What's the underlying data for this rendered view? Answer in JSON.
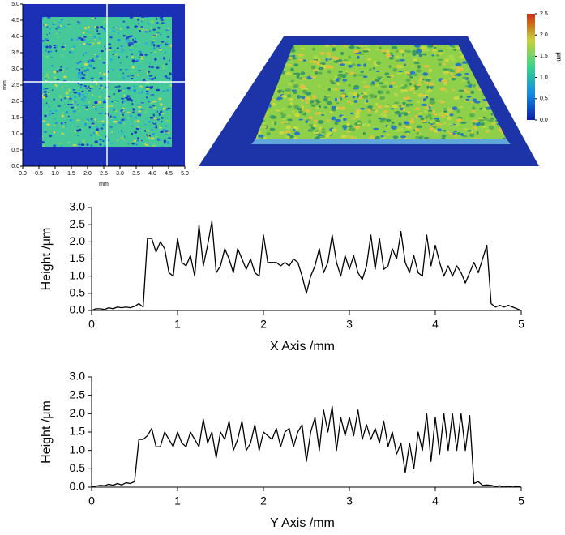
{
  "chart_data": [
    {
      "type": "heatmap",
      "xlabel": "mm",
      "ylabel": "mm",
      "xlim": [
        0,
        5
      ],
      "ylim": [
        0,
        5
      ],
      "xticks": [
        {
          "value": 0,
          "label": "0.0"
        },
        {
          "value": 0.5,
          "label": "0.5"
        },
        {
          "value": 1,
          "label": "1.0"
        },
        {
          "value": 1.5,
          "label": "1.5"
        },
        {
          "value": 2,
          "label": "2.0"
        },
        {
          "value": 2.5,
          "label": "2.5"
        },
        {
          "value": 3,
          "label": "3.0"
        },
        {
          "value": 3.5,
          "label": "3.5"
        },
        {
          "value": 4,
          "label": "4.0"
        },
        {
          "value": 4.5,
          "label": "4.5"
        },
        {
          "value": 5,
          "label": "5.0"
        }
      ],
      "yticks": [
        {
          "value": 0,
          "label": "0.0"
        },
        {
          "value": 0.5,
          "label": "0.5"
        },
        {
          "value": 1,
          "label": "1.0"
        },
        {
          "value": 1.5,
          "label": "1.5"
        },
        {
          "value": 2,
          "label": "2.0"
        },
        {
          "value": 2.5,
          "label": "2.5"
        },
        {
          "value": 3,
          "label": "3.0"
        },
        {
          "value": 3.5,
          "label": "3.5"
        },
        {
          "value": 4,
          "label": "4.0"
        },
        {
          "value": 4.5,
          "label": "4.5"
        },
        {
          "value": 5,
          "label": "5.0"
        }
      ]
    },
    {
      "type": "surface3d",
      "colorbar_label": "μm",
      "clim": [
        0,
        2.5
      ],
      "cticks": [
        {
          "value": 0,
          "label": "0.0"
        },
        {
          "value": 0.5,
          "label": "0.5"
        },
        {
          "value": 1,
          "label": "1.0"
        },
        {
          "value": 1.5,
          "label": "1.5"
        },
        {
          "value": 2,
          "label": "2.0"
        },
        {
          "value": 2.5,
          "label": "2.5"
        }
      ]
    },
    {
      "type": "line",
      "xlabel": "X Axis /mm",
      "ylabel": "Height /μm",
      "color": "#000000",
      "xlim": [
        0,
        5
      ],
      "ylim": [
        0,
        3
      ],
      "xticks": [
        0,
        1,
        2,
        3,
        4,
        5
      ],
      "yticks": [
        {
          "value": 0,
          "label": "0.0"
        },
        {
          "value": 0.5,
          "label": "0.5"
        },
        {
          "value": 1,
          "label": "1.0"
        },
        {
          "value": 1.5,
          "label": "1.5"
        },
        {
          "value": 2,
          "label": "2.0"
        },
        {
          "value": 2.5,
          "label": "2.5"
        },
        {
          "value": 3,
          "label": "3.0"
        }
      ],
      "x": [
        0,
        0.05,
        0.1,
        0.15,
        0.2,
        0.25,
        0.3,
        0.35,
        0.4,
        0.45,
        0.5,
        0.55,
        0.6,
        0.65,
        0.7,
        0.75,
        0.8,
        0.85,
        0.9,
        0.95,
        1,
        1.05,
        1.1,
        1.15,
        1.2,
        1.25,
        1.3,
        1.35,
        1.4,
        1.45,
        1.5,
        1.55,
        1.6,
        1.65,
        1.7,
        1.75,
        1.8,
        1.85,
        1.9,
        1.95,
        2,
        2.05,
        2.1,
        2.15,
        2.2,
        2.25,
        2.3,
        2.35,
        2.4,
        2.45,
        2.5,
        2.55,
        2.6,
        2.65,
        2.7,
        2.75,
        2.8,
        2.85,
        2.9,
        2.95,
        3,
        3.05,
        3.1,
        3.15,
        3.2,
        3.25,
        3.3,
        3.35,
        3.4,
        3.45,
        3.5,
        3.55,
        3.6,
        3.65,
        3.7,
        3.75,
        3.8,
        3.85,
        3.9,
        3.95,
        4,
        4.05,
        4.1,
        4.15,
        4.2,
        4.25,
        4.3,
        4.35,
        4.4,
        4.45,
        4.5,
        4.55,
        4.6,
        4.65,
        4.7,
        4.75,
        4.8,
        4.85,
        4.9,
        4.95,
        5
      ],
      "values": [
        0,
        0.05,
        0.05,
        0.03,
        0.08,
        0.05,
        0.1,
        0.08,
        0.1,
        0.08,
        0.12,
        0.2,
        0.1,
        2.1,
        2.1,
        1.7,
        2,
        1.8,
        1.1,
        1,
        2.1,
        1.4,
        1.3,
        1.6,
        1,
        2.5,
        1.3,
        1.9,
        2.6,
        1.1,
        1.3,
        1.8,
        1.5,
        1.1,
        1.8,
        1.5,
        1.2,
        1.5,
        1.1,
        1,
        2.2,
        1.4,
        1.4,
        1.4,
        1.3,
        1.4,
        1.3,
        1.5,
        1.4,
        1,
        0.5,
        1,
        1.3,
        1.8,
        1.1,
        1.4,
        2.2,
        1.4,
        1,
        1.6,
        1.2,
        1.6,
        1.1,
        0.9,
        1.3,
        2.2,
        1.2,
        2.1,
        1.2,
        1.3,
        1.8,
        1.5,
        2.3,
        1.4,
        1.1,
        1.6,
        1.1,
        1,
        2.2,
        1.3,
        1.9,
        1.4,
        1,
        1.3,
        1,
        1.3,
        1.1,
        0.8,
        1.1,
        1.4,
        1.1,
        1.5,
        1.9,
        0.2,
        0.1,
        0.15,
        0.1,
        0.15,
        0.1,
        0.05,
        0
      ]
    },
    {
      "type": "line",
      "xlabel": "Y Axis /mm",
      "ylabel": "Height /μm",
      "color": "#000000",
      "xlim": [
        0,
        5
      ],
      "ylim": [
        0,
        3
      ],
      "xticks": [
        0,
        1,
        2,
        3,
        4,
        5
      ],
      "yticks": [
        {
          "value": 0,
          "label": "0.0"
        },
        {
          "value": 0.5,
          "label": "0.5"
        },
        {
          "value": 1,
          "label": "1.0"
        },
        {
          "value": 1.5,
          "label": "1.5"
        },
        {
          "value": 2,
          "label": "2.0"
        },
        {
          "value": 2.5,
          "label": "2.5"
        },
        {
          "value": 3,
          "label": "3.0"
        }
      ],
      "x": [
        0,
        0.05,
        0.1,
        0.15,
        0.2,
        0.25,
        0.3,
        0.35,
        0.4,
        0.45,
        0.5,
        0.55,
        0.6,
        0.65,
        0.7,
        0.75,
        0.8,
        0.85,
        0.9,
        0.95,
        1,
        1.05,
        1.1,
        1.15,
        1.2,
        1.25,
        1.3,
        1.35,
        1.4,
        1.45,
        1.5,
        1.55,
        1.6,
        1.65,
        1.7,
        1.75,
        1.8,
        1.85,
        1.9,
        1.95,
        2,
        2.05,
        2.1,
        2.15,
        2.2,
        2.25,
        2.3,
        2.35,
        2.4,
        2.45,
        2.5,
        2.55,
        2.6,
        2.65,
        2.7,
        2.75,
        2.8,
        2.85,
        2.9,
        2.95,
        3,
        3.05,
        3.1,
        3.15,
        3.2,
        3.25,
        3.3,
        3.35,
        3.4,
        3.45,
        3.5,
        3.55,
        3.6,
        3.65,
        3.7,
        3.75,
        3.8,
        3.85,
        3.9,
        3.95,
        4,
        4.05,
        4.1,
        4.15,
        4.2,
        4.25,
        4.3,
        4.35,
        4.4,
        4.45,
        4.5,
        4.55,
        4.6,
        4.65,
        4.7,
        4.75,
        4.8,
        4.85,
        4.9,
        4.95,
        5
      ],
      "values": [
        0,
        0.03,
        0.05,
        0.04,
        0.08,
        0.05,
        0.1,
        0.06,
        0.12,
        0.1,
        0.15,
        1.3,
        1.3,
        1.4,
        1.6,
        1.1,
        1.1,
        1.5,
        1.3,
        1.1,
        1.5,
        1.2,
        1.1,
        1.5,
        1.3,
        1.1,
        1.85,
        1.2,
        1.5,
        0.8,
        1.5,
        1.3,
        1.8,
        1,
        1.3,
        1.8,
        1,
        1.2,
        1.7,
        1,
        1.5,
        1.4,
        1.3,
        1.6,
        1.1,
        1.5,
        1.6,
        1.1,
        1.5,
        1.7,
        0.7,
        1.5,
        1.9,
        1,
        2.1,
        1.5,
        2.2,
        1,
        1.9,
        1.4,
        1.9,
        1.4,
        2.1,
        1.3,
        1.7,
        1.3,
        1.6,
        1.2,
        1.8,
        1.1,
        1.5,
        0.9,
        1.2,
        0.4,
        1.2,
        0.5,
        1.5,
        1,
        2,
        0.7,
        1.9,
        0.9,
        2,
        1,
        2,
        1,
        2,
        1,
        1.95,
        0.1,
        0.15,
        0.05,
        0.06,
        0.05,
        0.02,
        0.04,
        0,
        0.03,
        0,
        0.02,
        0
      ]
    }
  ]
}
